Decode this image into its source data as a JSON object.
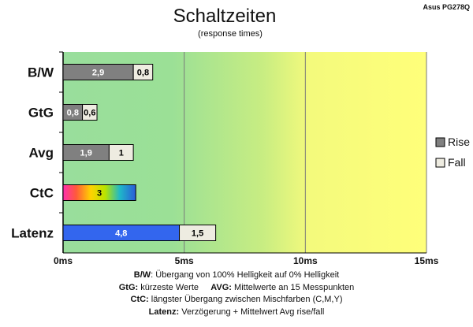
{
  "chart_data": {
    "type": "bar",
    "orientation": "horizontal",
    "stacked": true,
    "title": "Schaltzeiten",
    "subtitle": "(response times)",
    "brand": "Asus PG278Q",
    "categories": [
      "B/W",
      "GtG",
      "Avg",
      "CtC",
      "Latenz"
    ],
    "series": [
      {
        "name": "Rise",
        "values": [
          2.9,
          0.8,
          1.9,
          null,
          4.8
        ],
        "labels": [
          "2,9",
          "0,8",
          "1,9",
          "",
          "4,8"
        ]
      },
      {
        "name": "Fall",
        "values": [
          0.8,
          0.6,
          1.0,
          null,
          1.5
        ],
        "labels": [
          "0,8",
          "0,6",
          "1",
          "",
          "1,5"
        ]
      }
    ],
    "ctc": {
      "value": 3,
      "label": "3"
    },
    "xlim": [
      0,
      15
    ],
    "xticks": [
      0,
      5,
      10,
      15
    ],
    "xtick_labels": [
      "0ms",
      "5ms",
      "10ms",
      "15ms"
    ],
    "gridlines": true,
    "legend_position": "right",
    "colors": {
      "rise": "#808080",
      "fall": "#eeece1",
      "latenz_rise": "#3366ee",
      "bg_green": "#99de9c",
      "bg_lightgreen": "#b8e88a",
      "bg_yellow": "#ffff7a"
    }
  },
  "notes": [
    {
      "items": [
        {
          "label": "B/W",
          "text": ":  Übergang von 100% Helligkeit auf 0% Helligkeit"
        }
      ]
    },
    {
      "items": [
        {
          "label": "GtG:",
          "text": " kürzeste  Werte"
        },
        {
          "label": "AVG:",
          "text": " Mittelwerte  an 15 Messpunkten"
        }
      ]
    },
    {
      "items": [
        {
          "label": "CtC:",
          "text": " längster Übergang  zwischen Mischfarben  (C,M,Y)"
        }
      ]
    },
    {
      "items": [
        {
          "label": "Latenz:",
          "text": " Verzögerung  + Mittelwert  Avg rise/fall"
        }
      ]
    }
  ]
}
